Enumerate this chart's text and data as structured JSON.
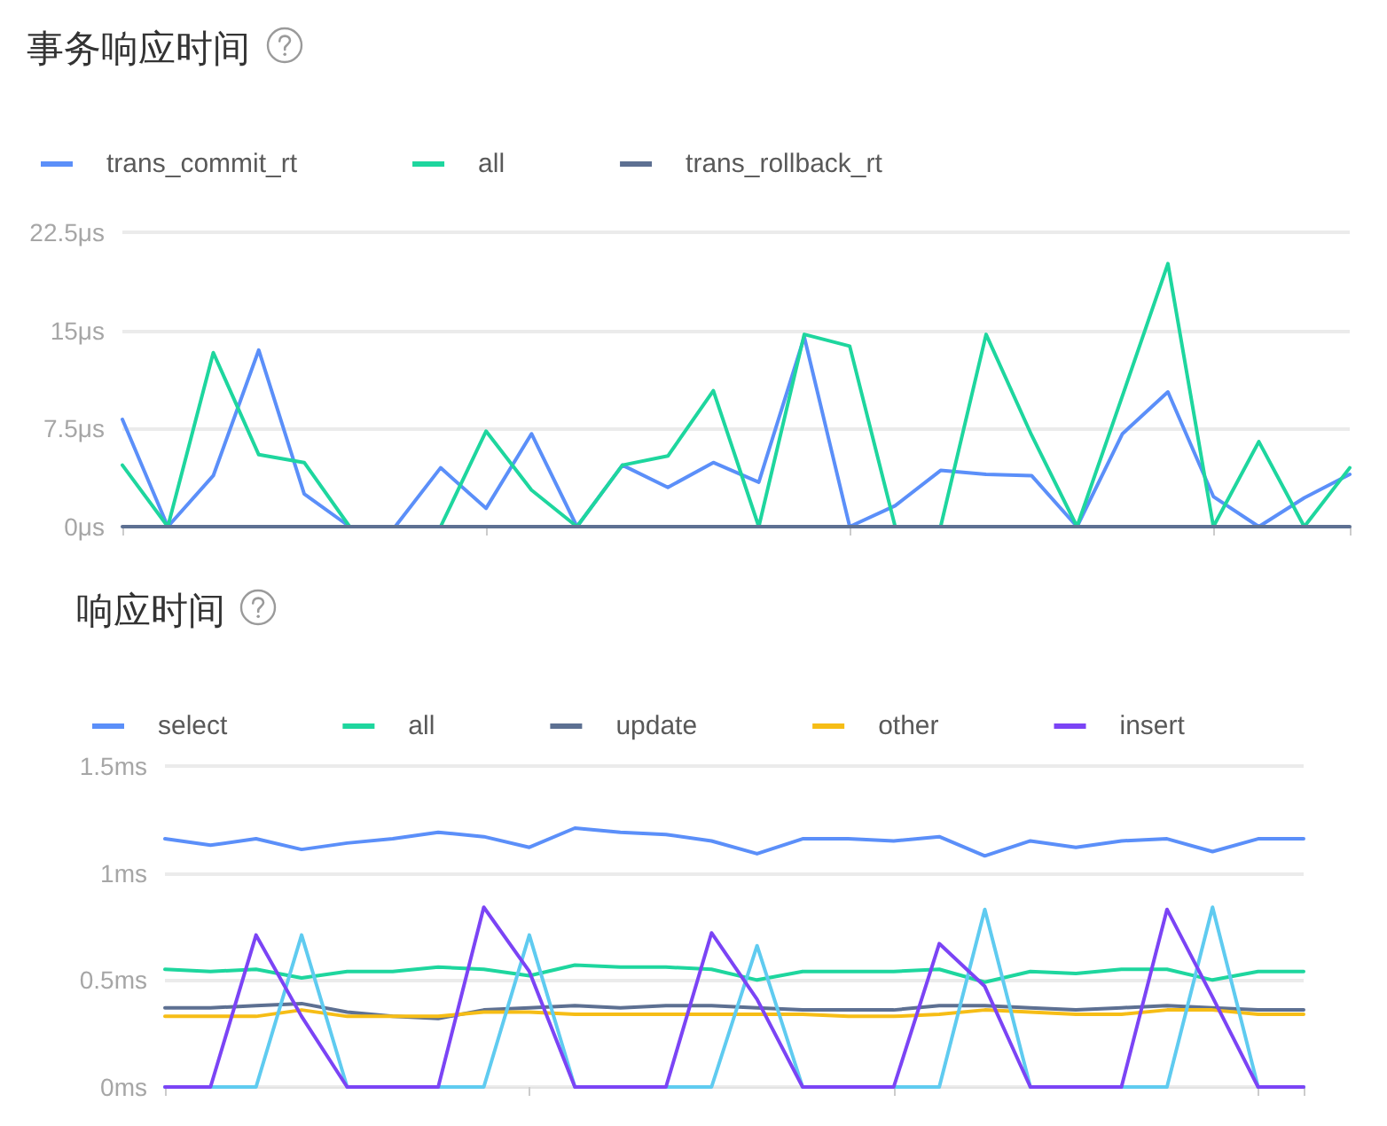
{
  "chart_data": [
    {
      "type": "line",
      "title": "事务响应时间",
      "categories": [
        null,
        null,
        null,
        null,
        null,
        null,
        null,
        null,
        null,
        null,
        null,
        null,
        null,
        null,
        null,
        null,
        null,
        null,
        null,
        null,
        null,
        null,
        null,
        null,
        null,
        null,
        null,
        null
      ],
      "series": [
        {
          "name": "trans_commit_rt",
          "color": "#5b8ff9",
          "values": [
            8.2,
            0,
            3.9,
            13.5,
            2.5,
            0,
            0,
            4.5,
            1.4,
            7.1,
            0,
            4.7,
            3.0,
            4.9,
            3.4,
            14.5,
            0,
            1.6,
            4.3,
            4.0,
            3.9,
            0,
            7.1,
            10.3,
            2.3,
            0,
            2.2,
            4.0
          ]
        },
        {
          "name": "all",
          "color": "#1ed69e",
          "values": [
            4.7,
            0,
            13.3,
            5.5,
            4.9,
            0,
            0,
            0,
            7.3,
            2.8,
            0,
            4.7,
            5.4,
            10.4,
            0,
            14.7,
            13.8,
            0,
            0,
            14.7,
            7.0,
            0,
            10.0,
            20.1,
            0,
            6.5,
            0,
            4.5
          ]
        },
        {
          "name": "trans_rollback_rt",
          "color": "#5d7092",
          "values": [
            0,
            0,
            0,
            0,
            0,
            0,
            0,
            0,
            0,
            0,
            0,
            0,
            0,
            0,
            0,
            0,
            0,
            0,
            0,
            0,
            0,
            0,
            0,
            0,
            0,
            0,
            0,
            0
          ]
        }
      ],
      "ylim": [
        0,
        22.5
      ],
      "yticks": [
        {
          "value": 0,
          "label": "0μs"
        },
        {
          "value": 7.5,
          "label": "7.5μs"
        },
        {
          "value": 15,
          "label": "15μs"
        },
        {
          "value": 22.5,
          "label": "22.5μs"
        }
      ],
      "grid": "y",
      "legend": "top left",
      "marker": "none"
    },
    {
      "type": "line",
      "title": "响应时间",
      "categories": [
        null,
        null,
        null,
        null,
        null,
        null,
        null,
        null,
        null,
        null,
        null,
        null,
        null,
        null,
        null,
        null,
        null,
        null,
        null,
        null,
        null,
        null,
        null,
        null,
        null,
        null
      ],
      "series": [
        {
          "name": "select",
          "color": "#5b8ff9",
          "values": [
            1.16,
            1.13,
            1.16,
            1.11,
            1.14,
            1.16,
            1.19,
            1.17,
            1.12,
            1.21,
            1.19,
            1.18,
            1.15,
            1.09,
            1.16,
            1.16,
            1.15,
            1.17,
            1.08,
            1.15,
            1.12,
            1.15,
            1.16,
            1.1,
            1.16,
            1.16
          ]
        },
        {
          "name": "all",
          "color": "#1ed69e",
          "values": [
            0.55,
            0.54,
            0.55,
            0.51,
            0.54,
            0.54,
            0.56,
            0.55,
            0.52,
            0.57,
            0.56,
            0.56,
            0.55,
            0.5,
            0.54,
            0.54,
            0.54,
            0.55,
            0.49,
            0.54,
            0.53,
            0.55,
            0.55,
            0.5,
            0.54,
            0.54
          ]
        },
        {
          "name": "update",
          "color": "#5d7092",
          "values": [
            0.37,
            0.37,
            0.38,
            0.39,
            0.35,
            0.33,
            0.32,
            0.36,
            0.37,
            0.38,
            0.37,
            0.38,
            0.38,
            0.37,
            0.36,
            0.36,
            0.36,
            0.38,
            0.38,
            0.37,
            0.36,
            0.37,
            0.38,
            0.37,
            0.36,
            0.36
          ]
        },
        {
          "name": "other",
          "color": "#f6bd16",
          "values": [
            0.33,
            0.33,
            0.33,
            0.36,
            0.33,
            0.33,
            0.33,
            0.35,
            0.35,
            0.34,
            0.34,
            0.34,
            0.34,
            0.34,
            0.34,
            0.33,
            0.33,
            0.34,
            0.36,
            0.35,
            0.34,
            0.34,
            0.36,
            0.36,
            0.34,
            0.34
          ]
        },
        {
          "color": "#5fcbf0",
          "values": [
            0,
            0,
            0,
            0.71,
            0,
            0,
            0,
            0,
            0.71,
            0,
            0,
            0,
            0,
            0.66,
            0,
            0,
            0,
            0,
            0.83,
            0,
            0,
            0,
            0,
            0.84,
            0,
            0
          ]
        },
        {
          "name": "insert",
          "color": "#7b44f5",
          "values": [
            0,
            0,
            0.71,
            0.33,
            0,
            0,
            0,
            0.84,
            0.54,
            0,
            0,
            0,
            0.72,
            0.41,
            0,
            0,
            0,
            0.67,
            0.47,
            0,
            0,
            0,
            0.83,
            0.42,
            0,
            0
          ]
        }
      ],
      "ylim": [
        0,
        1.5
      ],
      "yticks": [
        {
          "value": 0,
          "label": "0ms"
        },
        {
          "value": 0.5,
          "label": "0.5ms"
        },
        {
          "value": 1,
          "label": "1ms"
        },
        {
          "value": 1.5,
          "label": "1.5ms"
        }
      ],
      "grid": "y",
      "legend": "top left",
      "marker": "none"
    }
  ]
}
